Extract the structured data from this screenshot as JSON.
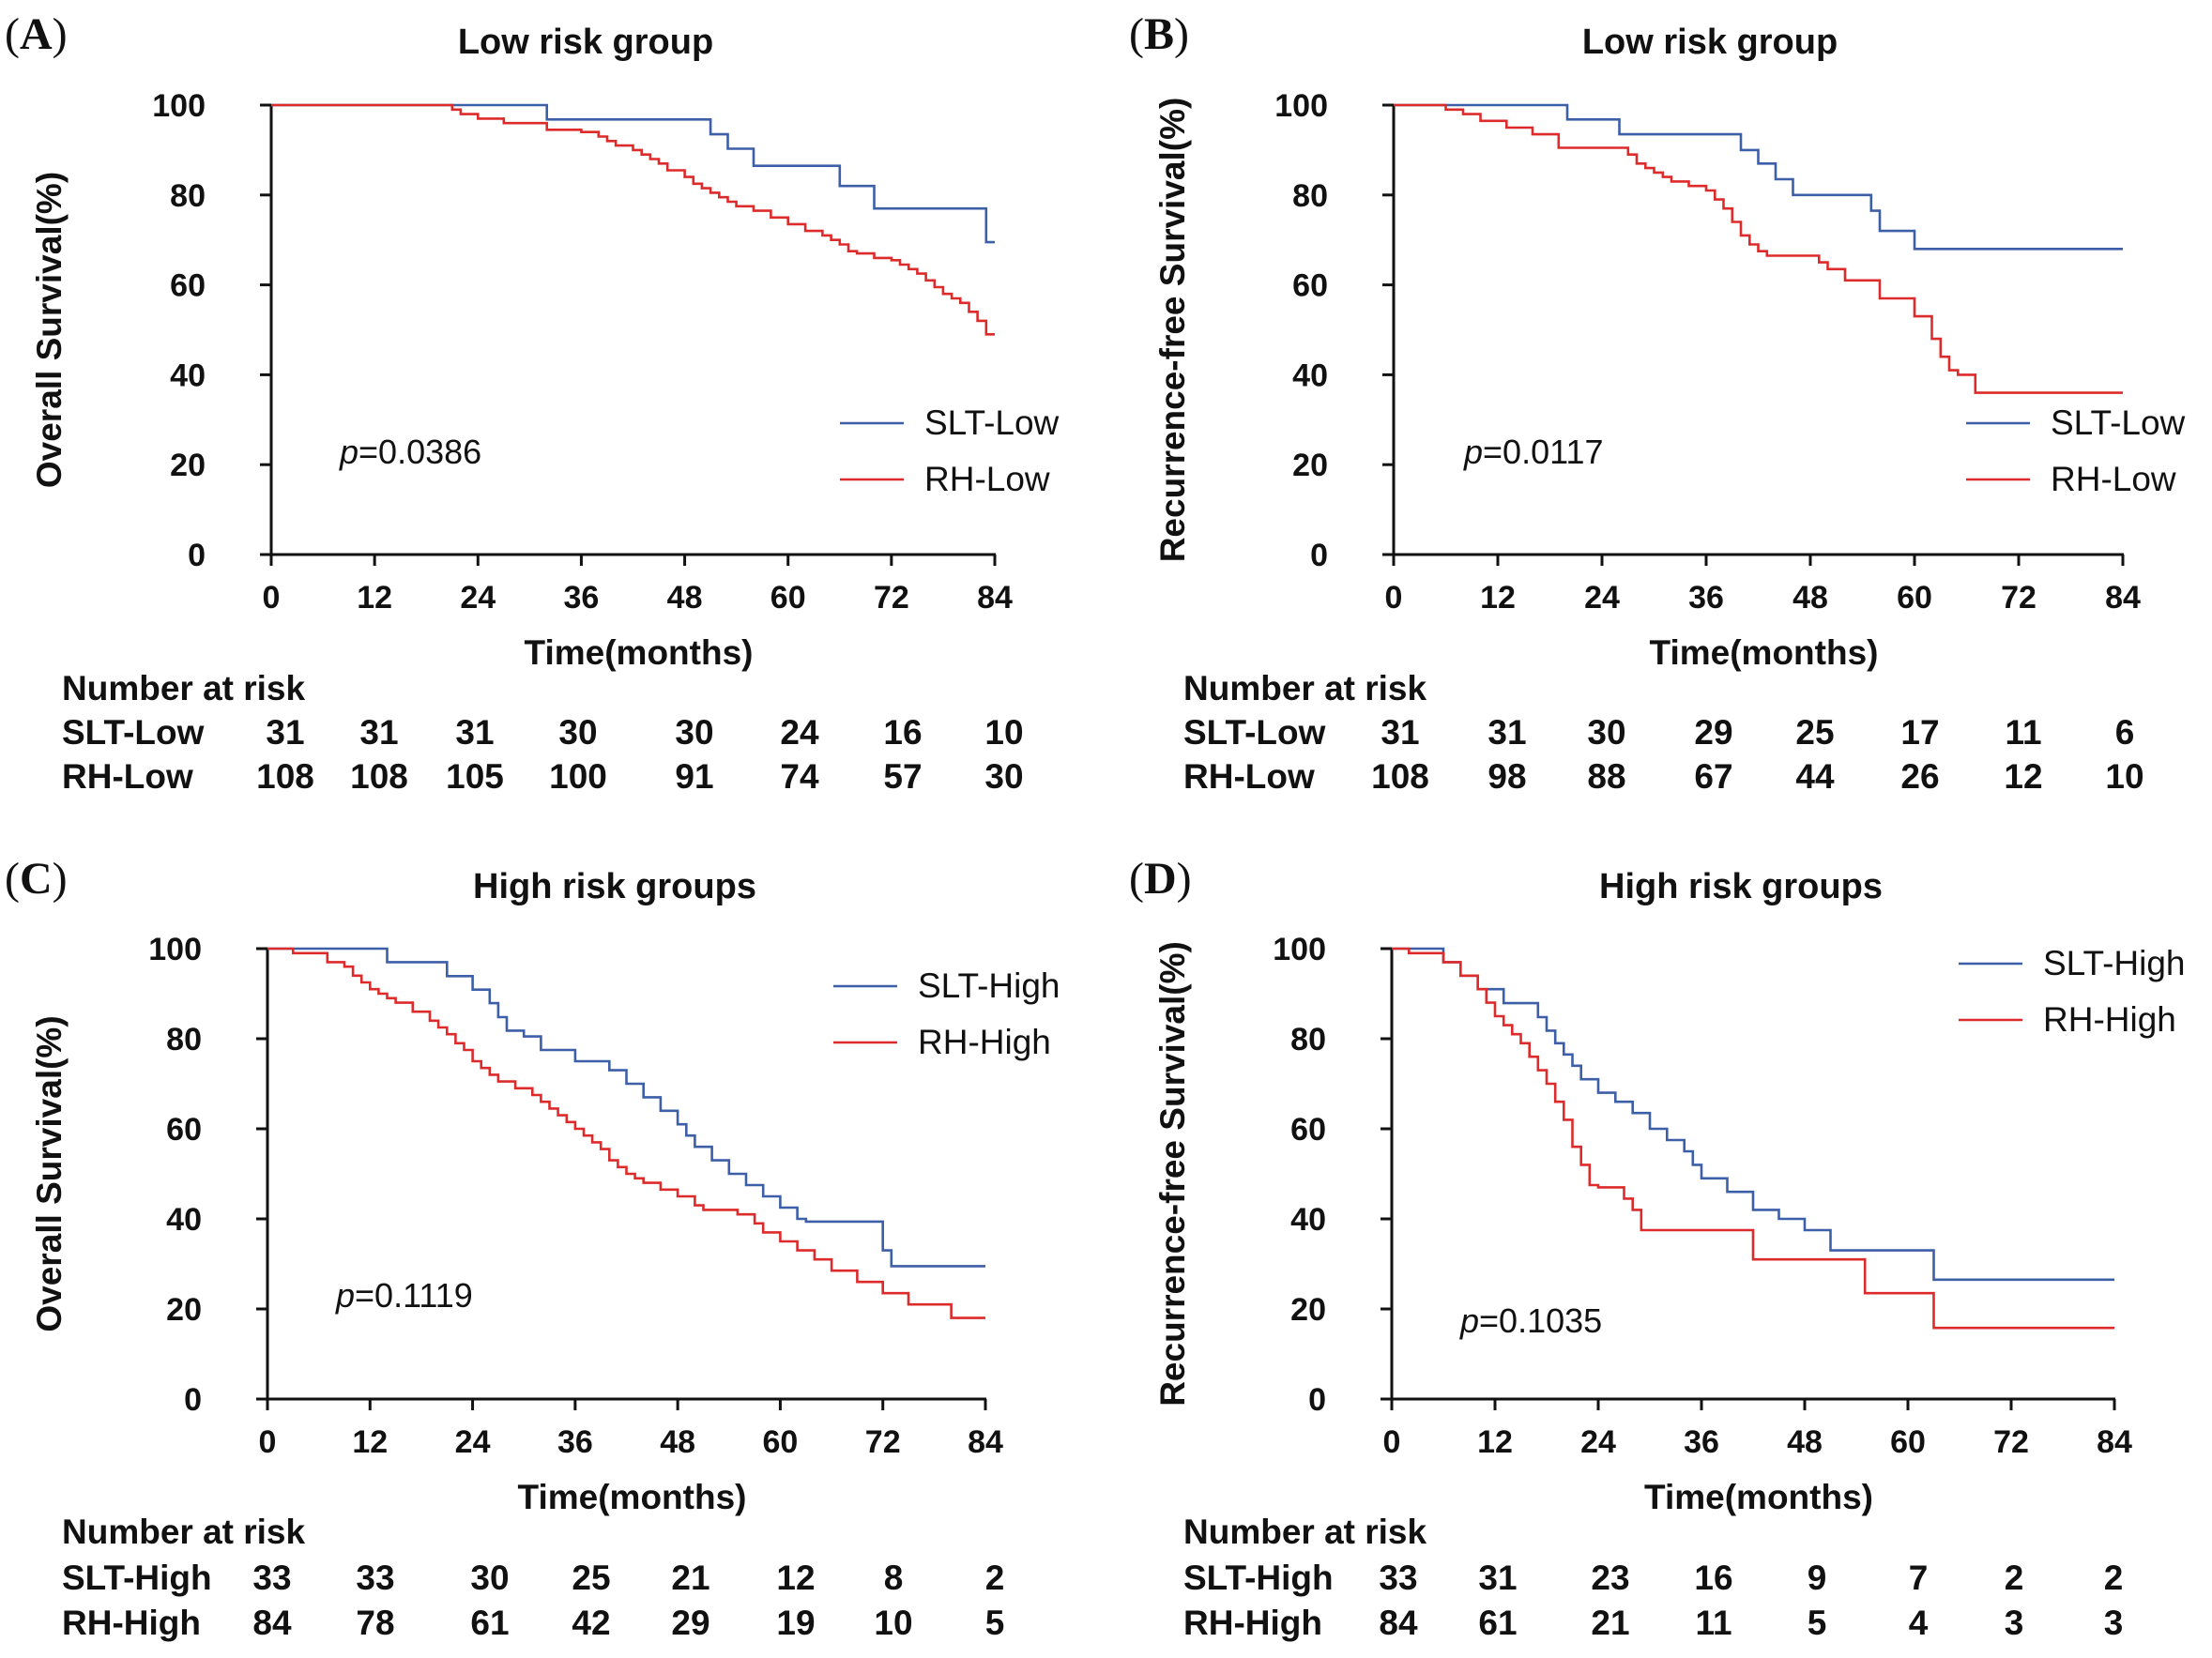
{
  "colors": {
    "slt": "#3d5fa8",
    "rh": "#dd2b2b",
    "axis": "#111111"
  },
  "risk_header": "Number at risk",
  "chart_data": [
    {
      "type": "line",
      "panel_letter": "A",
      "title": "Low risk group",
      "xlabel": "Time(months)",
      "ylabel": "Overall Survival(%)",
      "xlim": [
        0,
        84
      ],
      "ylim": [
        0,
        100
      ],
      "xticks": [
        "0",
        "12",
        "24",
        "36",
        "48",
        "60",
        "72",
        "84"
      ],
      "yticks": [
        "0",
        "20",
        "40",
        "60",
        "80",
        "100"
      ],
      "pvalue_prefix": "p",
      "pvalue": "=0.0386",
      "legend_position": "lower-right",
      "series": [
        {
          "name": "SLT-Low",
          "color": "#3d5fa8",
          "x": [
            0,
            32,
            51,
            53,
            56,
            66,
            70,
            83,
            84
          ],
          "y": [
            100,
            96.8,
            93.5,
            90.3,
            86.5,
            82,
            77,
            69.5,
            69.5
          ]
        },
        {
          "name": "RH-Low",
          "color": "#dd2b2b",
          "x": [
            0,
            21,
            22,
            24,
            27,
            32,
            36,
            38,
            39,
            40,
            42,
            43,
            44,
            45,
            46,
            48,
            49,
            50,
            51,
            52,
            53,
            54,
            56,
            58,
            60,
            62,
            64,
            65,
            66,
            67,
            68,
            70,
            72,
            73,
            74,
            75,
            76,
            77,
            78,
            79,
            80,
            81,
            82,
            83,
            84
          ],
          "y": [
            100,
            99,
            98,
            97,
            96,
            94.5,
            94,
            93,
            92,
            91,
            90,
            89,
            88,
            87,
            85.5,
            84,
            82.5,
            81.5,
            80.5,
            79.5,
            78.5,
            77.5,
            76.5,
            75,
            73.5,
            72,
            71,
            70,
            69,
            67.5,
            67,
            66,
            65.5,
            64.5,
            63.5,
            62.5,
            61,
            59.5,
            58,
            57,
            56,
            54,
            52,
            49,
            49
          ]
        }
      ],
      "risk_table": {
        "times": [
          0,
          12,
          24,
          36,
          48,
          60,
          72,
          84
        ],
        "rows": [
          {
            "label": "SLT-Low",
            "values": [
              "31",
              "31",
              "31",
              "30",
              "30",
              "24",
              "16",
              "10"
            ]
          },
          {
            "label": "RH-Low",
            "values": [
              "108",
              "108",
              "105",
              "100",
              "91",
              "74",
              "57",
              "30"
            ]
          }
        ]
      }
    },
    {
      "type": "line",
      "panel_letter": "B",
      "title": "Low risk group",
      "xlabel": "Time(months)",
      "ylabel": "Recurrence-free Survival(%)",
      "xlim": [
        0,
        84
      ],
      "ylim": [
        0,
        100
      ],
      "xticks": [
        "0",
        "12",
        "24",
        "36",
        "48",
        "60",
        "72",
        "84"
      ],
      "yticks": [
        "0",
        "20",
        "40",
        "60",
        "80",
        "100"
      ],
      "pvalue_prefix": "p",
      "pvalue": "=0.0117",
      "legend_position": "lower-right",
      "series": [
        {
          "name": "SLT-Low",
          "color": "#3d5fa8",
          "x": [
            0,
            20,
            26,
            40,
            42,
            44,
            46,
            55,
            56,
            60,
            84
          ],
          "y": [
            100,
            96.8,
            93.5,
            90,
            87,
            83.5,
            80,
            76.5,
            72,
            68,
            68
          ]
        },
        {
          "name": "RH-Low",
          "color": "#dd2b2b",
          "x": [
            0,
            6,
            8,
            10,
            13,
            16,
            19,
            27,
            28,
            29,
            30,
            31,
            32,
            34,
            36,
            37,
            38,
            39,
            40,
            41,
            42,
            43,
            48,
            49,
            50,
            52,
            56,
            60,
            62,
            63,
            64,
            65,
            67,
            84
          ],
          "y": [
            100,
            99,
            98,
            96.5,
            95,
            93.5,
            90.5,
            89,
            87,
            86,
            85,
            84,
            83,
            82,
            81,
            79,
            77,
            74,
            71,
            69,
            67.5,
            66.5,
            66.5,
            65,
            63.5,
            61,
            57,
            53,
            48,
            44,
            41,
            40,
            36,
            36
          ]
        }
      ],
      "risk_table": {
        "times": [
          0,
          12,
          24,
          36,
          48,
          60,
          72,
          84
        ],
        "rows": [
          {
            "label": "SLT-Low",
            "values": [
              "31",
              "31",
              "30",
              "29",
              "25",
              "17",
              "11",
              "6"
            ]
          },
          {
            "label": "RH-Low",
            "values": [
              "108",
              "98",
              "88",
              "67",
              "44",
              "26",
              "12",
              "10"
            ]
          }
        ]
      }
    },
    {
      "type": "line",
      "panel_letter": "C",
      "title": "High risk groups",
      "xlabel": "Time(months)",
      "ylabel": "Overall Survival(%)",
      "xlim": [
        0,
        84
      ],
      "ylim": [
        0,
        100
      ],
      "xticks": [
        "0",
        "12",
        "24",
        "36",
        "48",
        "60",
        "72",
        "84"
      ],
      "yticks": [
        "0",
        "20",
        "40",
        "60",
        "80",
        "100"
      ],
      "pvalue_prefix": "p",
      "pvalue": "=0.1119",
      "legend_position": "top-right",
      "series": [
        {
          "name": "SLT-High",
          "color": "#3d5fa8",
          "x": [
            0,
            14,
            21,
            24,
            26,
            27,
            28,
            30,
            32,
            36,
            40,
            42,
            44,
            46,
            48,
            49,
            50,
            52,
            54,
            56,
            58,
            60,
            62,
            63,
            72,
            73,
            84
          ],
          "y": [
            100,
            97,
            93.9,
            90.9,
            87.9,
            84.8,
            81.8,
            80.5,
            77.5,
            75,
            73,
            70,
            67,
            64,
            61,
            58.5,
            56,
            53,
            50,
            47.5,
            45,
            42.5,
            40,
            39.4,
            33,
            29.5,
            29.5
          ]
        },
        {
          "name": "RH-High",
          "color": "#dd2b2b",
          "x": [
            0,
            3,
            7,
            9,
            10,
            11,
            12,
            13,
            14,
            15,
            17,
            19,
            20,
            21,
            22,
            23,
            24,
            25,
            26,
            27,
            29,
            31,
            32,
            33,
            34,
            35,
            36,
            37,
            38,
            39,
            40,
            41,
            42,
            43,
            44,
            46,
            48,
            50,
            51,
            52,
            55,
            57,
            58,
            60,
            62,
            64,
            66,
            69,
            72,
            75,
            80,
            84
          ],
          "y": [
            100,
            99,
            97,
            96,
            94,
            92.5,
            91,
            90,
            89,
            88,
            86,
            84,
            82.5,
            81,
            79,
            77.5,
            75,
            73.5,
            72,
            70.5,
            69,
            67.5,
            66,
            64.5,
            63,
            61.5,
            60,
            58.5,
            57,
            55.5,
            53,
            51.5,
            50,
            49,
            48,
            46.5,
            45,
            43,
            42,
            42,
            41,
            39,
            37,
            35,
            33,
            31,
            28.5,
            26,
            23.5,
            21,
            18,
            18
          ]
        }
      ],
      "risk_table": {
        "times": [
          0,
          12,
          24,
          36,
          48,
          60,
          72,
          84
        ],
        "rows": [
          {
            "label": "SLT-High",
            "values": [
              "33",
              "33",
              "30",
              "25",
              "21",
              "12",
              "8",
              "2"
            ]
          },
          {
            "label": "RH-High",
            "values": [
              "84",
              "78",
              "61",
              "42",
              "29",
              "19",
              "10",
              "5"
            ]
          }
        ]
      }
    },
    {
      "type": "line",
      "panel_letter": "D",
      "title": "High risk groups",
      "xlabel": "Time(months)",
      "ylabel": "Recurrence-free Survival(%)",
      "xlim": [
        0,
        84
      ],
      "ylim": [
        0,
        100
      ],
      "xticks": [
        "0",
        "12",
        "24",
        "36",
        "48",
        "60",
        "72",
        "84"
      ],
      "yticks": [
        "0",
        "20",
        "40",
        "60",
        "80",
        "100"
      ],
      "pvalue_prefix": "p",
      "pvalue": "=0.1035",
      "legend_position": "top-right",
      "series": [
        {
          "name": "SLT-High",
          "color": "#3d5fa8",
          "x": [
            0,
            6,
            8,
            10,
            13,
            17,
            18,
            19,
            20,
            21,
            22,
            24,
            26,
            28,
            30,
            32,
            34,
            35,
            36,
            39,
            42,
            45,
            48,
            51,
            63,
            84
          ],
          "y": [
            100,
            97,
            94,
            91,
            87.9,
            84.8,
            81.8,
            79,
            76.5,
            74,
            71,
            68,
            66,
            63.5,
            60,
            57.5,
            55,
            52,
            49,
            46,
            42,
            40,
            37.5,
            33,
            26.5,
            26.5
          ]
        },
        {
          "name": "RH-High",
          "color": "#dd2b2b",
          "x": [
            0,
            2,
            6,
            8,
            10,
            11,
            12,
            13,
            14,
            15,
            16,
            17,
            18,
            19,
            20,
            21,
            22,
            23,
            24,
            27,
            28,
            29,
            42,
            55,
            63,
            84
          ],
          "y": [
            100,
            99,
            97,
            94,
            91,
            88,
            85,
            83,
            81,
            79,
            76,
            73,
            70,
            66,
            62,
            56,
            52,
            47.5,
            47,
            44.5,
            42,
            37.5,
            31,
            23.5,
            15.8,
            15.8
          ]
        }
      ],
      "risk_table": {
        "times": [
          0,
          12,
          24,
          36,
          48,
          60,
          72,
          84
        ],
        "rows": [
          {
            "label": "SLT-High",
            "values": [
              "33",
              "31",
              "23",
              "16",
              "9",
              "7",
              "2",
              "2"
            ]
          },
          {
            "label": "RH-High",
            "values": [
              "84",
              "61",
              "21",
              "11",
              "5",
              "4",
              "3",
              "3"
            ]
          }
        ]
      }
    }
  ]
}
